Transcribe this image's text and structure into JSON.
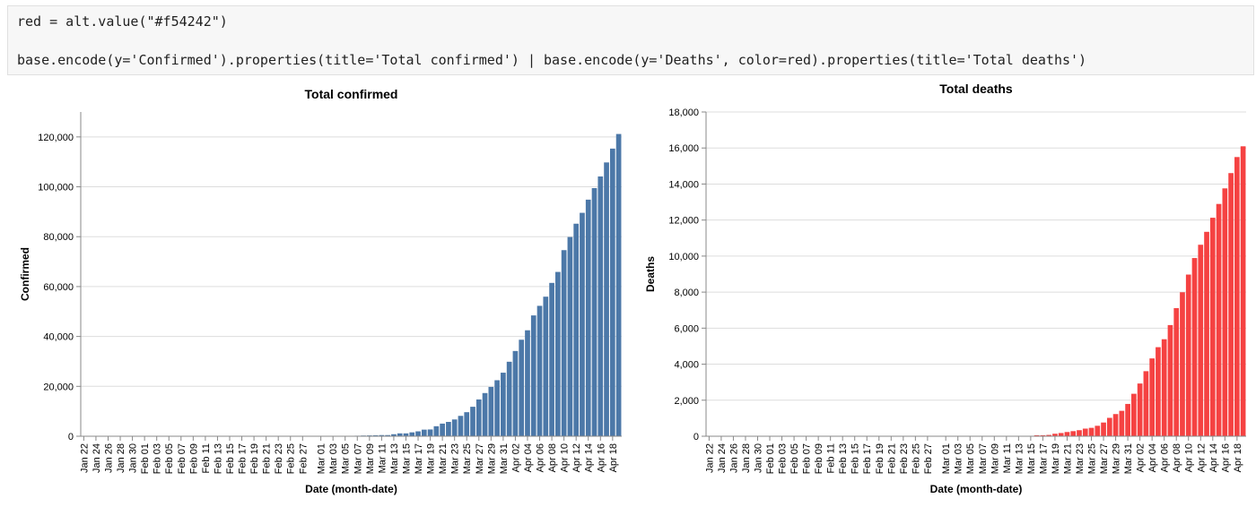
{
  "code": [
    "red = alt.value(\"#f54242\")",
    "base.encode(y='Confirmed').properties(title='Total confirmed') | base.encode(y='Deaths', color=red).properties(title='Total deaths')"
  ],
  "chart_data": [
    {
      "type": "bar",
      "title": "Total confirmed",
      "x_label": "Date (month-date)",
      "y_label": "Confirmed",
      "color": "#4c78a8",
      "grid": true,
      "categories": [
        "Jan 22",
        null,
        "Jan 24",
        null,
        "Jan 26",
        null,
        "Jan 28",
        null,
        "Jan 30",
        null,
        "Feb 01",
        null,
        "Feb 03",
        null,
        "Feb 05",
        null,
        "Feb 07",
        null,
        "Feb 09",
        null,
        "Feb 11",
        null,
        "Feb 13",
        null,
        "Feb 15",
        null,
        "Feb 17",
        null,
        "Feb 19",
        null,
        "Feb 21",
        null,
        "Feb 23",
        null,
        "Feb 25",
        null,
        "Feb 27",
        null,
        null,
        "Mar 01",
        null,
        "Mar 03",
        null,
        "Mar 05",
        null,
        "Mar 07",
        null,
        "Mar 09",
        null,
        "Mar 11",
        null,
        "Mar 13",
        null,
        "Mar 15",
        null,
        "Mar 17",
        null,
        "Mar 19",
        null,
        "Mar 21",
        null,
        "Mar 23",
        null,
        "Mar 25",
        null,
        "Mar 27",
        null,
        "Mar 29",
        null,
        "Mar 31",
        null,
        "Apr 02",
        null,
        "Apr 04",
        null,
        "Apr 06",
        null,
        "Apr 08",
        null,
        "Apr 10",
        null,
        "Apr 12",
        null,
        "Apr 14",
        null,
        "Apr 16",
        null,
        "Apr 18",
        null
      ],
      "values": [
        0,
        0,
        0,
        0,
        0,
        0,
        0,
        0,
        0,
        2,
        2,
        2,
        2,
        2,
        2,
        3,
        3,
        3,
        8,
        8,
        8,
        9,
        9,
        9,
        9,
        9,
        9,
        9,
        9,
        9,
        9,
        9,
        9,
        9,
        13,
        13,
        15,
        20,
        23,
        36,
        40,
        51,
        86,
        116,
        164,
        207,
        274,
        322,
        384,
        459,
        459,
        802,
        1144,
        1145,
        1551,
        1960,
        2642,
        2716,
        4014,
        5067,
        5745,
        6726,
        8164,
        9640,
        11812,
        14745,
        17312,
        19780,
        22453,
        25481,
        29865,
        34173,
        38689,
        42477,
        48436,
        52279,
        55949,
        61474,
        65872,
        74605,
        79874,
        85206,
        89570,
        94845,
        99483,
        104145,
        109769,
        115314,
        121172
      ],
      "ylim": [
        0,
        130000
      ],
      "yticks": [
        0,
        {
          "value": 20000,
          "label": "20,000"
        },
        {
          "value": 40000,
          "label": "40,000"
        },
        {
          "value": 60000,
          "label": "60,000"
        },
        {
          "value": 80000,
          "label": "80,000"
        },
        {
          "value": 100000,
          "label": "100,000"
        },
        {
          "value": 120000,
          "label": "120,000"
        }
      ]
    },
    {
      "type": "bar",
      "title": "Total deaths",
      "x_label": "Date (month-date)",
      "y_label": "Deaths",
      "color": "#f54242",
      "grid": true,
      "categories": [
        "Jan 22",
        null,
        "Jan 24",
        null,
        "Jan 26",
        null,
        "Jan 28",
        null,
        "Jan 30",
        null,
        "Feb 01",
        null,
        "Feb 03",
        null,
        "Feb 05",
        null,
        "Feb 07",
        null,
        "Feb 09",
        null,
        "Feb 11",
        null,
        "Feb 13",
        null,
        "Feb 15",
        null,
        "Feb 17",
        null,
        "Feb 19",
        null,
        "Feb 21",
        null,
        "Feb 23",
        null,
        "Feb 25",
        null,
        "Feb 27",
        null,
        null,
        "Mar 01",
        null,
        "Mar 03",
        null,
        "Mar 05",
        null,
        "Mar 07",
        null,
        "Mar 09",
        null,
        "Mar 11",
        null,
        "Mar 13",
        null,
        "Mar 15",
        null,
        "Mar 17",
        null,
        "Mar 19",
        null,
        "Mar 21",
        null,
        "Mar 23",
        null,
        "Mar 25",
        null,
        "Mar 27",
        null,
        "Mar 29",
        null,
        "Mar 31",
        null,
        "Apr 02",
        null,
        "Apr 04",
        null,
        "Apr 06",
        null,
        "Apr 08",
        null,
        "Apr 10",
        null,
        "Apr 12",
        null,
        "Apr 14",
        null,
        "Apr 16",
        null,
        "Apr 18",
        null
      ],
      "values": [
        0,
        0,
        0,
        0,
        0,
        0,
        0,
        0,
        0,
        0,
        0,
        0,
        0,
        0,
        0,
        0,
        0,
        0,
        0,
        0,
        0,
        0,
        0,
        0,
        0,
        0,
        0,
        0,
        0,
        0,
        0,
        0,
        0,
        0,
        0,
        0,
        0,
        0,
        0,
        0,
        0,
        0,
        0,
        1,
        2,
        2,
        3,
        4,
        6,
        8,
        8,
        8,
        21,
        21,
        56,
        56,
        72,
        138,
        178,
        234,
        282,
        336,
        423,
        466,
        580,
        761,
        1021,
        1231,
        1411,
        1793,
        2357,
        2926,
        3611,
        4320,
        4943,
        5385,
        6171,
        7111,
        7993,
        8974,
        9892,
        10629,
        11347,
        12129,
        12894,
        13759,
        14607,
        15498,
        16095
      ],
      "ylim": [
        0,
        18000
      ],
      "yticks": [
        0,
        {
          "value": 2000,
          "label": "2,000"
        },
        {
          "value": 4000,
          "label": "4,000"
        },
        {
          "value": 6000,
          "label": "6,000"
        },
        {
          "value": 8000,
          "label": "8,000"
        },
        {
          "value": 10000,
          "label": "10,000"
        },
        {
          "value": 12000,
          "label": "12,000"
        },
        {
          "value": 14000,
          "label": "14,000"
        },
        {
          "value": 16000,
          "label": "16,000"
        },
        {
          "value": 18000,
          "label": "18,000"
        }
      ]
    }
  ]
}
